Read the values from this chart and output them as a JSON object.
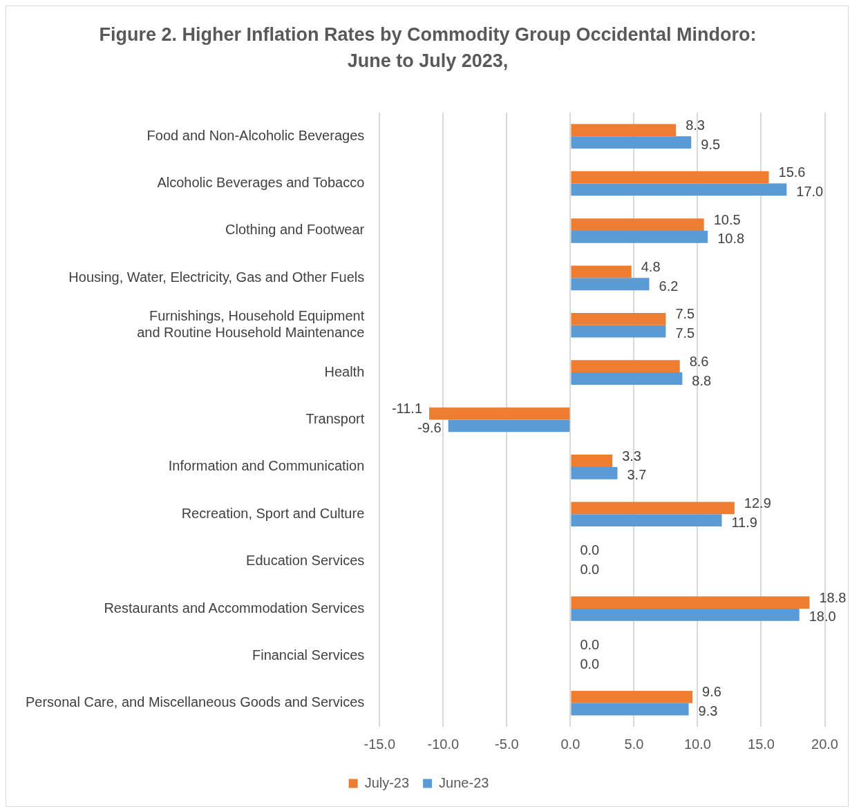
{
  "chart_data": {
    "type": "bar",
    "orientation": "horizontal",
    "title": "Figure 2. Higher Inflation Rates by Commodity Group Occidental Mindoro: June to July 2023,",
    "categories": [
      "Food and Non-Alcoholic Beverages",
      "Alcoholic Beverages and Tobacco",
      "Clothing and Footwear",
      "Housing, Water, Electricity, Gas and Other Fuels",
      "Furnishings, Household Equipment and Routine Household Maintenance",
      "Health",
      "Transport",
      "Information and Communication",
      "Recreation, Sport and Culture",
      "Education Services",
      "Restaurants and Accommodation Services",
      "Financial Services",
      "Personal Care, and Miscellaneous Goods and Services"
    ],
    "series": [
      {
        "name": "July-23",
        "color": "#ed7d31",
        "values": [
          8.3,
          15.6,
          10.5,
          4.8,
          7.5,
          8.6,
          -11.1,
          3.3,
          12.9,
          0,
          18.8,
          0,
          9.6
        ],
        "value_labels": [
          "8.3",
          "15.6",
          "10.5",
          "4.8",
          "7.5",
          "8.6",
          "-11.1",
          "3.3",
          "12.9",
          "0.0",
          "18.8",
          "0.0",
          "9.6"
        ]
      },
      {
        "name": "June-23",
        "color": "#5b9bd5",
        "values": [
          9.5,
          17.0,
          10.8,
          6.2,
          7.5,
          8.8,
          -9.6,
          3.7,
          11.9,
          0,
          18.0,
          0,
          9.3
        ],
        "value_labels": [
          "9.5",
          "17.0",
          "10.8",
          "6.2",
          "7.5",
          "8.8",
          "-9.6",
          "3.7",
          "11.9",
          "0.0",
          "18.0",
          "0.0",
          "9.3"
        ]
      }
    ],
    "xlim": [
      -15,
      20
    ],
    "xticks": [
      {
        "value": -15,
        "label": "-15.0"
      },
      {
        "value": -10,
        "label": "-10.0"
      },
      {
        "value": -5,
        "label": "-5.0"
      },
      {
        "value": 0,
        "label": "0.0"
      },
      {
        "value": 5,
        "label": "5.0"
      },
      {
        "value": 10,
        "label": "10.0"
      },
      {
        "value": 15,
        "label": "15.0"
      },
      {
        "value": 20,
        "label": "20.0"
      }
    ],
    "grid": "x",
    "legend": "bottom"
  }
}
